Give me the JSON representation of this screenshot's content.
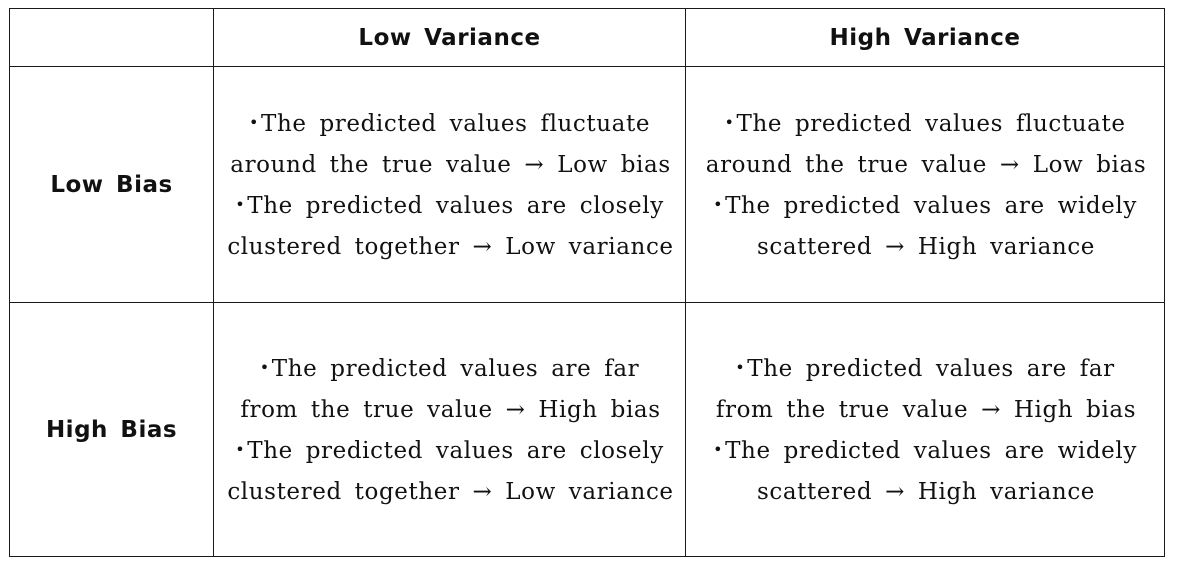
{
  "table": {
    "corner": "",
    "columns": [
      "Low Variance",
      "High Variance"
    ],
    "rows": [
      {
        "label": "Low Bias",
        "cells": [
          [
            {
              "bullet": "•",
              "text": "The predicted values fluctuate"
            },
            {
              "bullet": "",
              "text": "around the true value → Low bias"
            },
            {
              "bullet": "•",
              "text": "The predicted values are closely"
            },
            {
              "bullet": "",
              "text": "clustered together → Low variance"
            }
          ],
          [
            {
              "bullet": "•",
              "text": "The predicted values fluctuate"
            },
            {
              "bullet": "",
              "text": "around the true value → Low bias"
            },
            {
              "bullet": "•",
              "text": "The predicted values are widely"
            },
            {
              "bullet": "",
              "text": "scattered → High variance"
            }
          ]
        ]
      },
      {
        "label": "High Bias",
        "cells": [
          [
            {
              "bullet": "•",
              "text": "The predicted values are far"
            },
            {
              "bullet": "",
              "text": "from the true value → High bias"
            },
            {
              "bullet": "•",
              "text": "The predicted values are closely"
            },
            {
              "bullet": "",
              "text": "clustered together → Low variance"
            }
          ],
          [
            {
              "bullet": "•",
              "text": "The predicted values are far"
            },
            {
              "bullet": "",
              "text": "from the true value → High bias"
            },
            {
              "bullet": "•",
              "text": "The predicted values are widely"
            },
            {
              "bullet": "",
              "text": "scattered → High variance"
            }
          ]
        ]
      }
    ]
  }
}
